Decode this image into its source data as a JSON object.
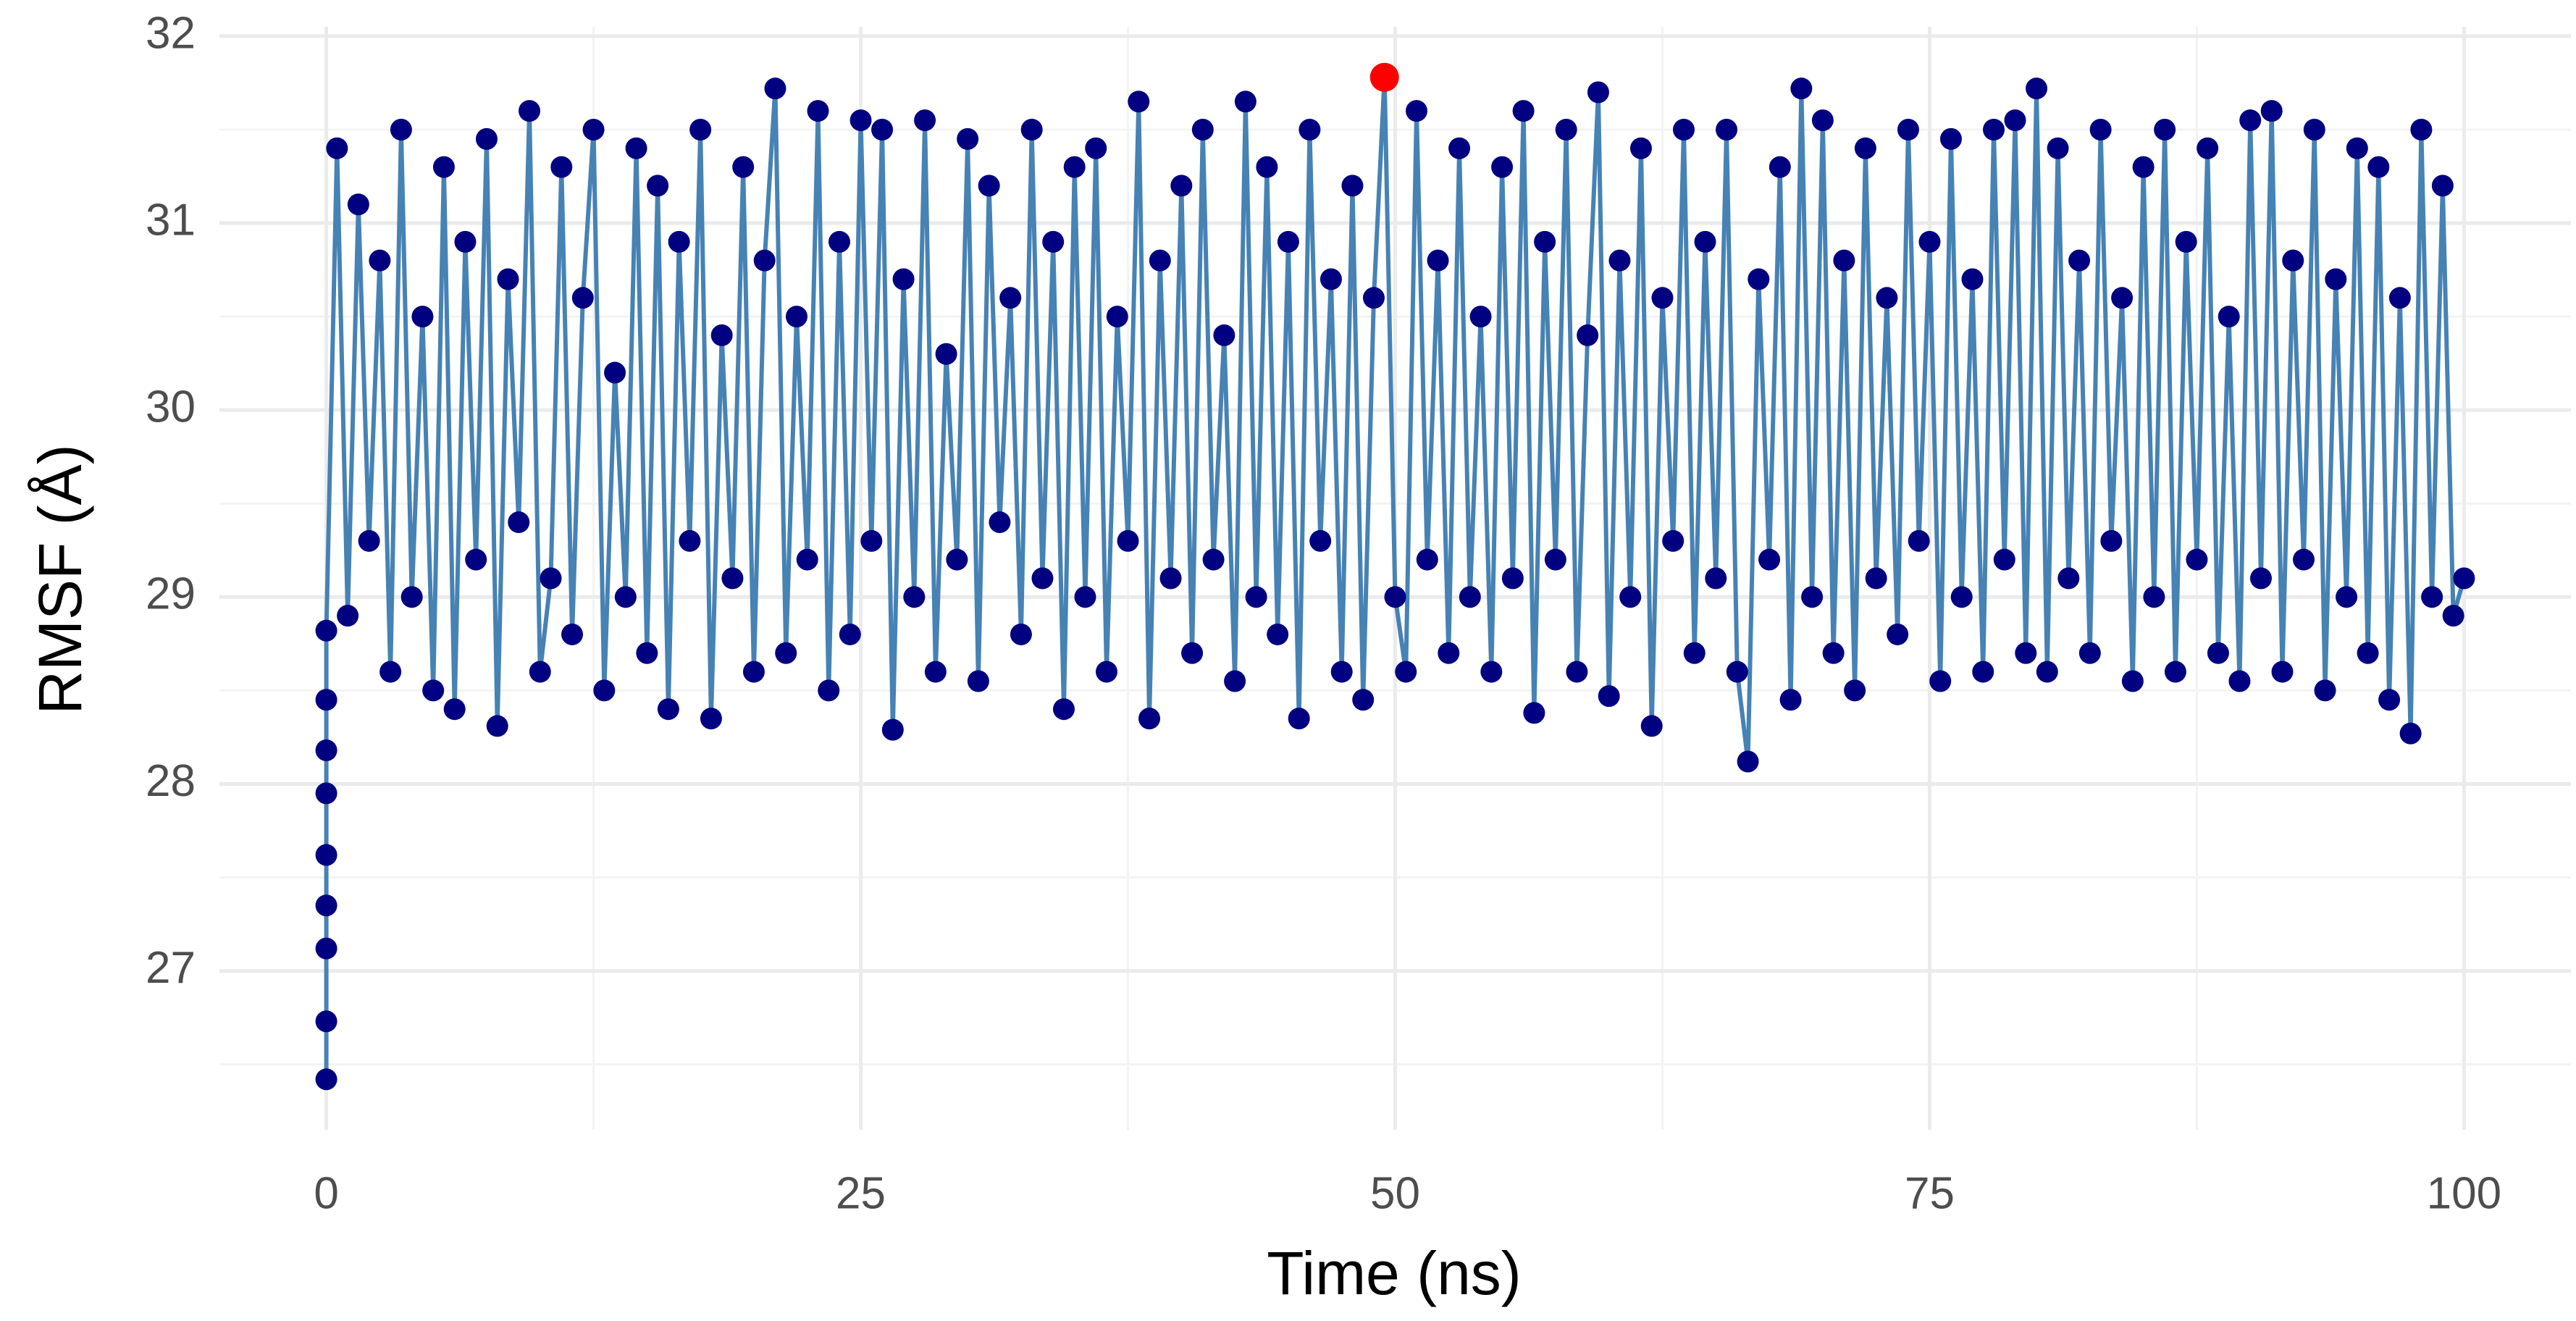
{
  "chart_data": {
    "type": "line-points",
    "x_label": "Time (ns)",
    "y_label": "RMSF (Å)",
    "x": [
      0,
      0,
      0,
      0,
      0,
      0,
      0,
      0,
      0,
      0.5,
      1,
      1.5,
      2,
      2.5,
      3,
      3.5,
      4,
      4.5,
      5,
      5.5,
      6,
      6.5,
      7,
      7.5,
      8,
      8.5,
      9,
      9.5,
      10,
      10.5,
      11,
      11.5,
      12,
      12.5,
      13,
      13.5,
      14,
      14.5,
      15,
      15.5,
      16,
      16.5,
      17,
      17.5,
      18,
      18.5,
      19,
      19.5,
      20,
      20.5,
      21,
      21.5,
      22,
      22.5,
      23,
      23.5,
      24,
      24.5,
      25,
      25.5,
      26,
      26.5,
      27,
      27.5,
      28,
      28.5,
      29,
      29.5,
      30,
      30.5,
      31,
      31.5,
      32,
      32.5,
      33,
      33.5,
      34,
      34.5,
      35,
      35.5,
      36,
      36.5,
      37,
      37.5,
      38,
      38.5,
      39,
      39.5,
      40,
      40.5,
      41,
      41.5,
      42,
      42.5,
      43,
      43.5,
      44,
      44.5,
      45,
      45.5,
      46,
      46.5,
      47,
      47.5,
      48,
      48.5,
      49,
      49.5,
      50,
      50.5,
      51,
      51.5,
      52,
      52.5,
      53,
      53.5,
      54,
      54.5,
      55,
      55.5,
      56,
      56.5,
      57,
      57.5,
      58,
      58.5,
      59,
      59.5,
      60,
      60.5,
      61,
      61.5,
      62,
      62.5,
      63,
      63.5,
      64,
      64.5,
      65,
      65.5,
      66,
      66.5,
      67,
      67.5,
      68,
      68.5,
      69,
      69.5,
      70,
      70.5,
      71,
      71.5,
      72,
      72.5,
      73,
      73.5,
      74,
      74.5,
      75,
      75.5,
      76,
      76.5,
      77,
      77.5,
      78,
      78.5,
      79,
      79.5,
      80,
      80.5,
      81,
      81.5,
      82,
      82.5,
      83,
      83.5,
      84,
      84.5,
      85,
      85.5,
      86,
      86.5,
      87,
      87.5,
      88,
      88.5,
      89,
      89.5,
      90,
      90.5,
      91,
      91.5,
      92,
      92.5,
      93,
      93.5,
      94,
      94.5,
      95,
      95.5,
      96,
      96.5,
      97,
      97.5,
      98,
      98.5,
      99,
      99.5,
      100
    ],
    "values": [
      26.42,
      26.73,
      27.12,
      27.35,
      27.62,
      27.95,
      28.18,
      28.45,
      28.82,
      31.4,
      28.9,
      31.1,
      29.3,
      30.8,
      28.6,
      31.5,
      29.0,
      30.5,
      28.5,
      31.3,
      28.4,
      30.9,
      29.2,
      31.45,
      28.31,
      30.7,
      29.4,
      31.6,
      28.6,
      29.1,
      31.3,
      28.8,
      30.6,
      31.5,
      28.5,
      30.2,
      29.0,
      31.4,
      28.7,
      31.2,
      28.4,
      30.9,
      29.3,
      31.5,
      28.35,
      30.4,
      29.1,
      31.3,
      28.6,
      30.8,
      31.72,
      28.7,
      30.5,
      29.2,
      31.6,
      28.5,
      30.9,
      28.8,
      31.55,
      29.3,
      31.5,
      28.29,
      30.7,
      29.0,
      31.55,
      28.6,
      30.3,
      29.2,
      31.45,
      28.55,
      31.2,
      29.4,
      30.6,
      28.8,
      31.5,
      29.1,
      30.9,
      28.4,
      31.3,
      29.0,
      31.4,
      28.6,
      30.5,
      29.3,
      31.65,
      28.35,
      30.8,
      29.1,
      31.2,
      28.7,
      31.5,
      29.2,
      30.4,
      28.55,
      31.65,
      29.0,
      31.3,
      28.8,
      30.9,
      28.35,
      31.5,
      29.3,
      30.7,
      28.6,
      31.2,
      28.45,
      30.6,
      31.78,
      29.0,
      28.6,
      31.6,
      29.2,
      30.8,
      28.7,
      31.4,
      29.0,
      30.5,
      28.6,
      31.3,
      29.1,
      31.6,
      28.38,
      30.9,
      29.2,
      31.5,
      28.6,
      30.4,
      31.7,
      28.47,
      30.8,
      29.0,
      31.4,
      28.31,
      30.6,
      29.3,
      31.5,
      28.7,
      30.9,
      29.1,
      31.5,
      28.6,
      28.12,
      30.7,
      29.2,
      31.3,
      28.45,
      31.72,
      29.0,
      31.55,
      28.7,
      30.8,
      28.5,
      31.4,
      29.1,
      30.6,
      28.8,
      31.5,
      29.3,
      30.9,
      28.55,
      31.45,
      29.0,
      30.7,
      28.6,
      31.5,
      29.2,
      31.55,
      28.7,
      31.72,
      28.6,
      31.4,
      29.1,
      30.8,
      28.7,
      31.5,
      29.3,
      30.6,
      28.55,
      31.3,
      29.0,
      31.5,
      28.6,
      30.9,
      29.2,
      31.4,
      28.7,
      30.5,
      28.55,
      31.55,
      29.1,
      31.6,
      28.6,
      30.8,
      29.2,
      31.5,
      28.5,
      30.7,
      29.0,
      31.4,
      28.7,
      31.3,
      28.45,
      30.6,
      28.27,
      31.5,
      29.0,
      31.2,
      28.9,
      29.1
    ],
    "point_color": "#000080",
    "line_color": "#4682b4",
    "highlight": {
      "index": 107,
      "color": "#ff0000"
    },
    "xlim": [
      -5,
      105
    ],
    "xticks": [
      0,
      25,
      50,
      75,
      100
    ],
    "xminor": [
      12.5,
      37.5,
      62.5,
      87.5
    ],
    "ylim": [
      26.15,
      32.05
    ],
    "yticks": [
      27,
      28,
      29,
      30,
      31,
      32
    ],
    "yminor": [
      26.5,
      27.5,
      28.5,
      29.5,
      30.5,
      31.5
    ],
    "grid": true
  }
}
